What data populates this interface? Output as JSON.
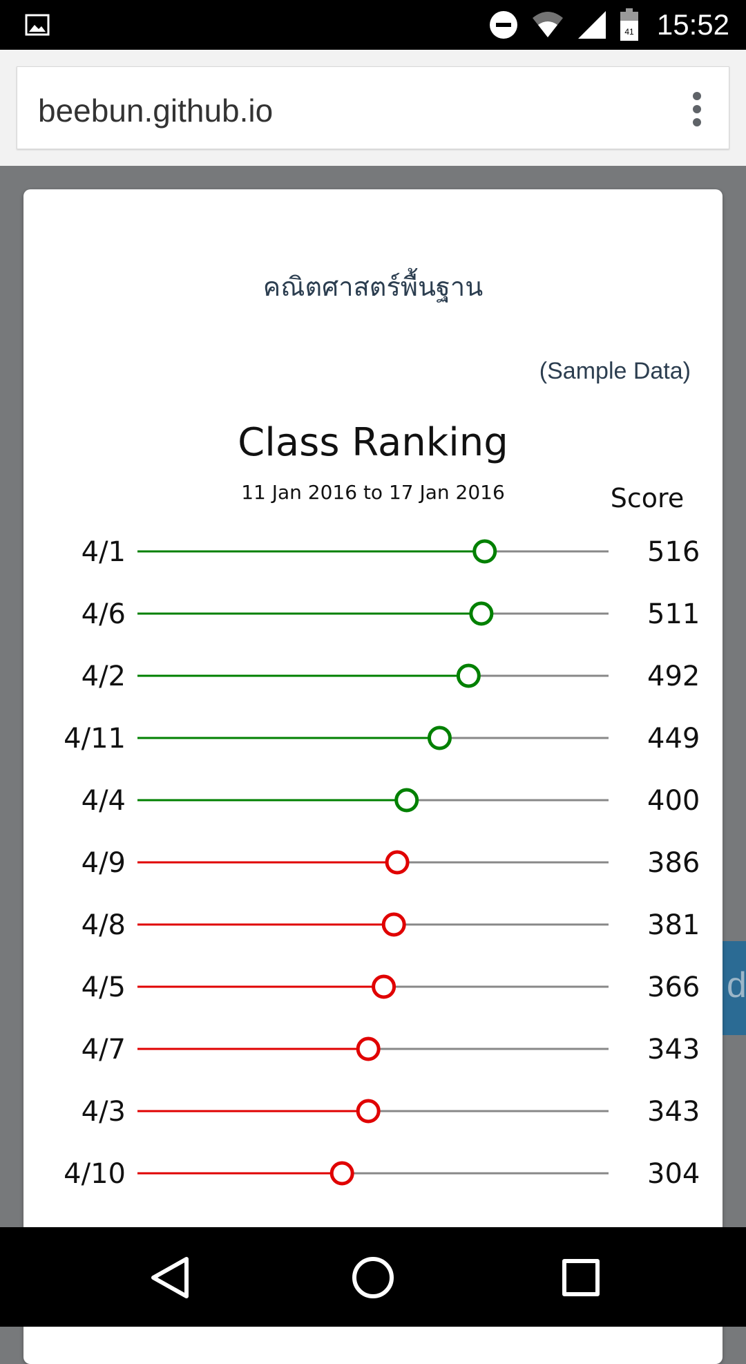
{
  "status_bar": {
    "time": "15:52",
    "battery_level": "41",
    "icons": [
      "image-icon",
      "do-not-disturb-icon",
      "wifi-icon",
      "cell-signal-icon",
      "battery-icon"
    ]
  },
  "browser": {
    "url": "beebun.github.io",
    "menu_icon": "more-vert-icon"
  },
  "page": {
    "subject": "คณิตศาสตร์พื้นฐาน",
    "sample_note": "(Sample Data)",
    "side_tab_fragment": "de"
  },
  "chart_data": {
    "type": "dot-plot",
    "title": "Class Ranking",
    "subtitle": "11 Jan 2016 to 17 Jan 2016",
    "value_header": "Score",
    "xlim": [
      0,
      700
    ],
    "threshold": 400,
    "colors": {
      "above": "#008000",
      "below": "#e00000",
      "track": "#888888"
    },
    "categories": [
      "4/1",
      "4/6",
      "4/2",
      "4/11",
      "4/4",
      "4/9",
      "4/8",
      "4/5",
      "4/7",
      "4/3",
      "4/10"
    ],
    "values": [
      516,
      511,
      492,
      449,
      400,
      386,
      381,
      366,
      343,
      343,
      304
    ]
  },
  "nav_bar": {
    "icons": [
      "back-icon",
      "home-icon",
      "recents-icon"
    ]
  }
}
